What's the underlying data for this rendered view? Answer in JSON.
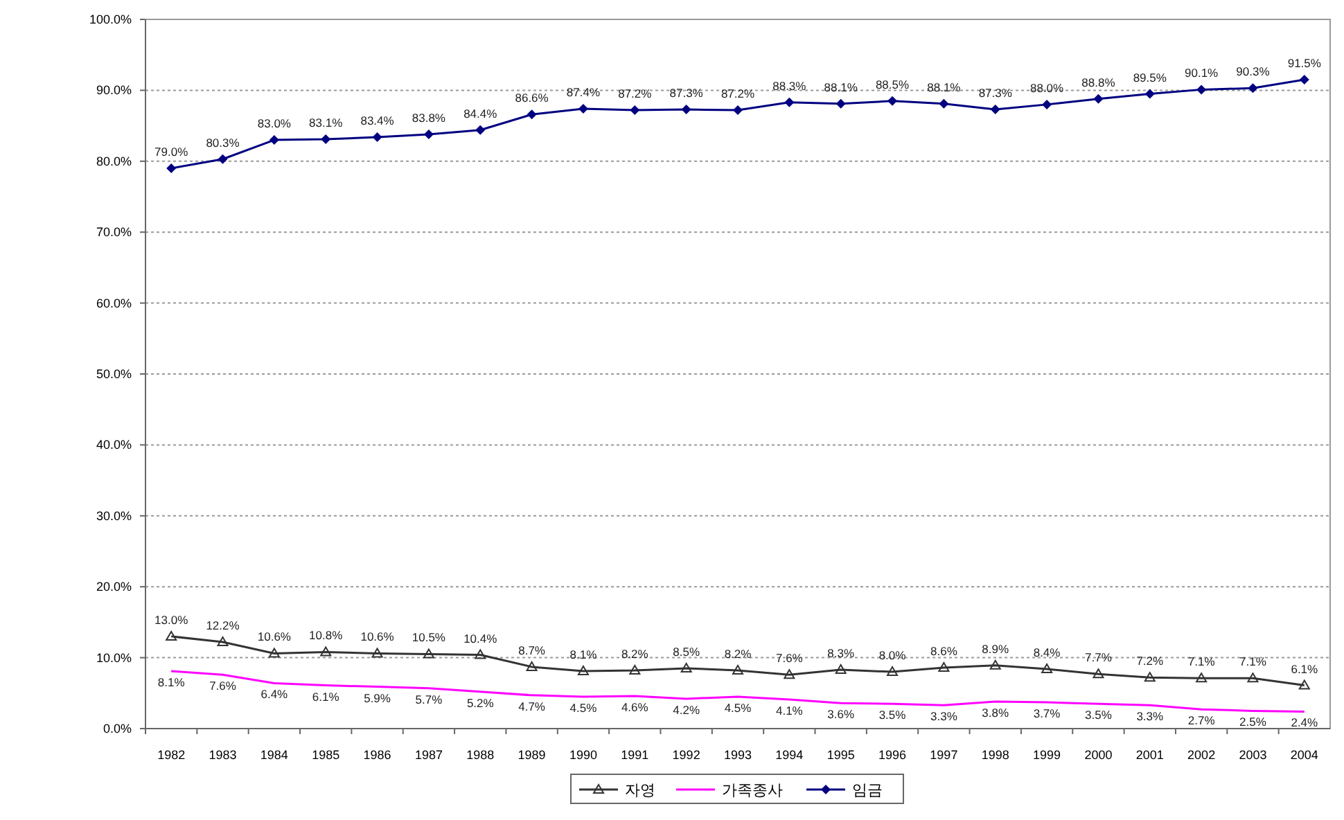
{
  "chart_data": {
    "type": "line",
    "categories": [
      "1982",
      "1983",
      "1984",
      "1985",
      "1986",
      "1987",
      "1988",
      "1989",
      "1990",
      "1991",
      "1992",
      "1993",
      "1994",
      "1995",
      "1996",
      "1997",
      "1998",
      "1999",
      "2000",
      "2001",
      "2002",
      "2003",
      "2004"
    ],
    "series": [
      {
        "name": "자영",
        "color": "#333333",
        "marker": "triangle",
        "values": [
          13.0,
          12.2,
          10.6,
          10.8,
          10.6,
          10.5,
          10.4,
          8.7,
          8.1,
          8.2,
          8.5,
          8.2,
          7.6,
          8.3,
          8.0,
          8.6,
          8.9,
          8.4,
          7.7,
          7.2,
          7.1,
          7.1,
          6.1
        ],
        "value_labels": [
          "13.0%",
          "12.2%",
          "10.6%",
          "10.8%",
          "10.6%",
          "10.5%",
          "10.4%",
          "8.7%",
          "8.1%",
          "8.2%",
          "8.5%",
          "8.2%",
          "7.6%",
          "8.3%",
          "8.0%",
          "8.6%",
          "8.9%",
          "8.4%",
          "7.7%",
          "7.2%",
          "7.1%",
          "7.1%",
          "6.1%"
        ]
      },
      {
        "name": "가족종사",
        "color": "#ff00ff",
        "marker": "none",
        "values": [
          8.1,
          7.6,
          6.4,
          6.1,
          5.9,
          5.7,
          5.2,
          4.7,
          4.5,
          4.6,
          4.2,
          4.5,
          4.1,
          3.6,
          3.5,
          3.3,
          3.8,
          3.7,
          3.5,
          3.3,
          2.7,
          2.5,
          2.4
        ],
        "value_labels": [
          "8.1%",
          "7.6%",
          "6.4%",
          "6.1%",
          "5.9%",
          "5.7%",
          "5.2%",
          "4.7%",
          "4.5%",
          "4.6%",
          "4.2%",
          "4.5%",
          "4.1%",
          "3.6%",
          "3.5%",
          "3.3%",
          "3.8%",
          "3.7%",
          "3.5%",
          "3.3%",
          "2.7%",
          "2.5%",
          "2.4%"
        ]
      },
      {
        "name": "임금",
        "color": "#000080",
        "marker": "diamond",
        "values": [
          79.0,
          80.3,
          83.0,
          83.1,
          83.4,
          83.8,
          84.4,
          86.6,
          87.4,
          87.2,
          87.3,
          87.2,
          88.3,
          88.1,
          88.5,
          88.1,
          87.3,
          88.0,
          88.8,
          89.5,
          90.1,
          90.3,
          91.5
        ],
        "value_labels": [
          "79.0%",
          "80.3%",
          "83.0%",
          "83.1%",
          "83.4%",
          "83.8%",
          "84.4%",
          "86.6%",
          "87.4%",
          "87.2%",
          "87.3%",
          "87.2%",
          "88.3%",
          "88.1%",
          "88.5%",
          "88.1%",
          "87.3%",
          "88.0%",
          "88.8%",
          "89.5%",
          "90.1%",
          "90.3%",
          "91.5%"
        ]
      }
    ],
    "ylim": [
      0,
      100
    ],
    "yticks": [
      {
        "value": 0,
        "label": "0.0%"
      },
      {
        "value": 10,
        "label": "10.0%"
      },
      {
        "value": 20,
        "label": "20.0%"
      },
      {
        "value": 30,
        "label": "30.0%"
      },
      {
        "value": 40,
        "label": "40.0%"
      },
      {
        "value": 50,
        "label": "50.0%"
      },
      {
        "value": 60,
        "label": "60.0%"
      },
      {
        "value": 70,
        "label": "70.0%"
      },
      {
        "value": 80,
        "label": "80.0%"
      },
      {
        "value": 90,
        "label": "90.0%"
      },
      {
        "value": 100,
        "label": "100.0%"
      }
    ],
    "grid": "y",
    "legend": "bottom",
    "line_style": "solid"
  }
}
